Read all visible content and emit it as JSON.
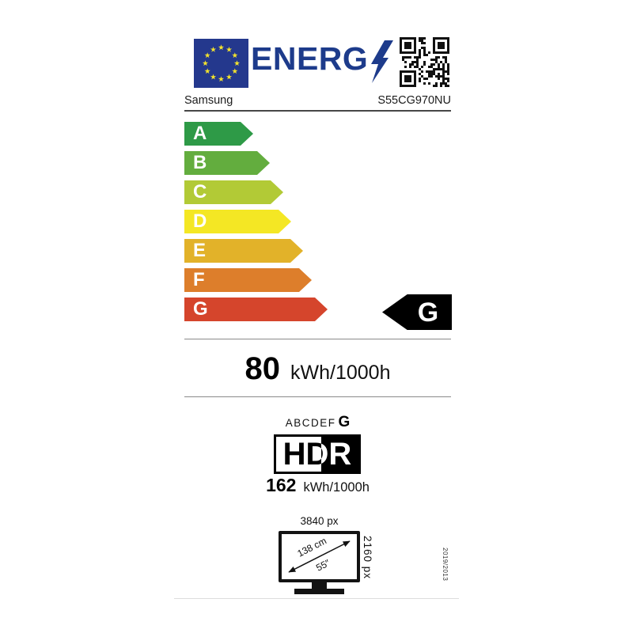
{
  "label": {
    "logo_text": "ENERG",
    "supplier": "Samsung",
    "model": "S55CG970NU"
  },
  "scale": {
    "ratings": [
      {
        "letter": "A",
        "color": "#2e9a47"
      },
      {
        "letter": "B",
        "color": "#63ad3e"
      },
      {
        "letter": "C",
        "color": "#b2ca36"
      },
      {
        "letter": "D",
        "color": "#f4e724"
      },
      {
        "letter": "E",
        "color": "#e2b229"
      },
      {
        "letter": "F",
        "color": "#dd7e2b"
      },
      {
        "letter": "G",
        "color": "#d5452c"
      }
    ],
    "assigned_class": {
      "letter": "G",
      "color": "#000000"
    }
  },
  "energy": {
    "value": "80",
    "unit": "kWh/1000h"
  },
  "hdr": {
    "scale_letters": "ABCDEF",
    "assigned_class": "G",
    "logo": "HDR",
    "value": "162",
    "unit": "kWh/1000h"
  },
  "screen": {
    "horizontal_resolution": "3840 px",
    "vertical_resolution": "2160 px",
    "diagonal_cm": "138 cm",
    "diagonal_inch": "55″"
  },
  "regulation": "2019/2013",
  "colors": {
    "eu_blue": "#1d3b8b",
    "star_yellow": "#f2e22e",
    "class_arrow_bg": "#000000"
  },
  "icons": {
    "eu_flag": "eu-flag-icon",
    "lightning": "lightning-bolt-icon",
    "qr": "qr-code"
  }
}
